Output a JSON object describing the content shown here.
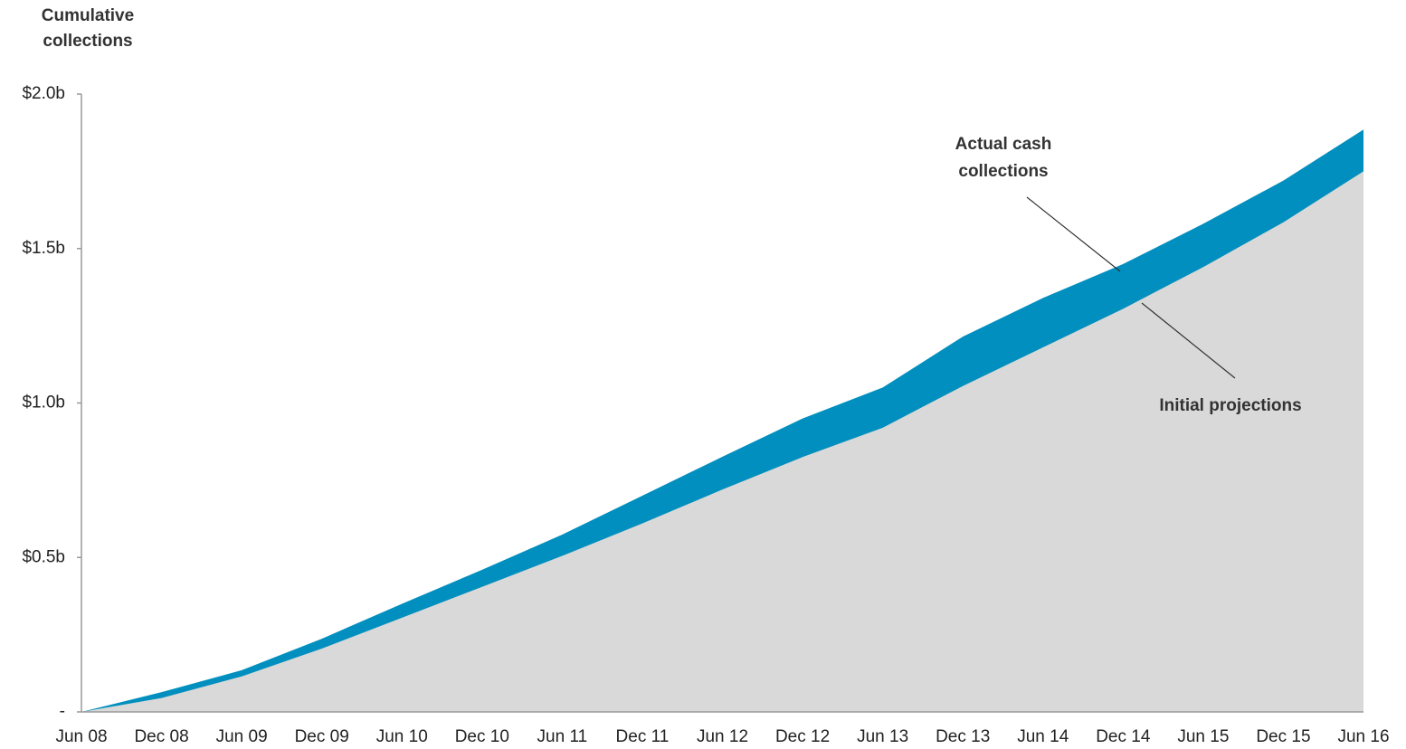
{
  "chart_data": {
    "type": "area",
    "y_label": [
      "Cumulative",
      "collections"
    ],
    "categories": [
      "Jun 08",
      "Dec 08",
      "Jun 09",
      "Dec 09",
      "Jun 10",
      "Dec 10",
      "Jun 11",
      "Dec 11",
      "Jun 12",
      "Dec 12",
      "Jun 13",
      "Dec 13",
      "Jun 14",
      "Dec 14",
      "Jun 15",
      "Dec 15",
      "Jun 16"
    ],
    "series": [
      {
        "name": [
          "Actual cash",
          "collections"
        ],
        "color": "#008fbe",
        "values": [
          0,
          0.064,
          0.135,
          0.237,
          0.35,
          0.46,
          0.574,
          0.7,
          0.826,
          0.95,
          1.05,
          1.215,
          1.34,
          1.45,
          1.58,
          1.72,
          1.885
        ]
      },
      {
        "name": [
          "Initial projections"
        ],
        "color": "#d9d9d9",
        "values": [
          0,
          0.045,
          0.115,
          0.205,
          0.305,
          0.405,
          0.505,
          0.61,
          0.72,
          0.825,
          0.92,
          1.055,
          1.18,
          1.305,
          1.44,
          1.585,
          1.75
        ]
      }
    ],
    "ylim": [
      0,
      2
    ],
    "yticks": [
      {
        "value": 0,
        "label": "-"
      },
      {
        "value": 0.5,
        "label": "$0.5b"
      },
      {
        "value": 1,
        "label": "$1.0b"
      },
      {
        "value": 1.5,
        "label": "$1.5b"
      },
      {
        "value": 2,
        "label": "$2.0b"
      }
    ],
    "grid": false
  }
}
